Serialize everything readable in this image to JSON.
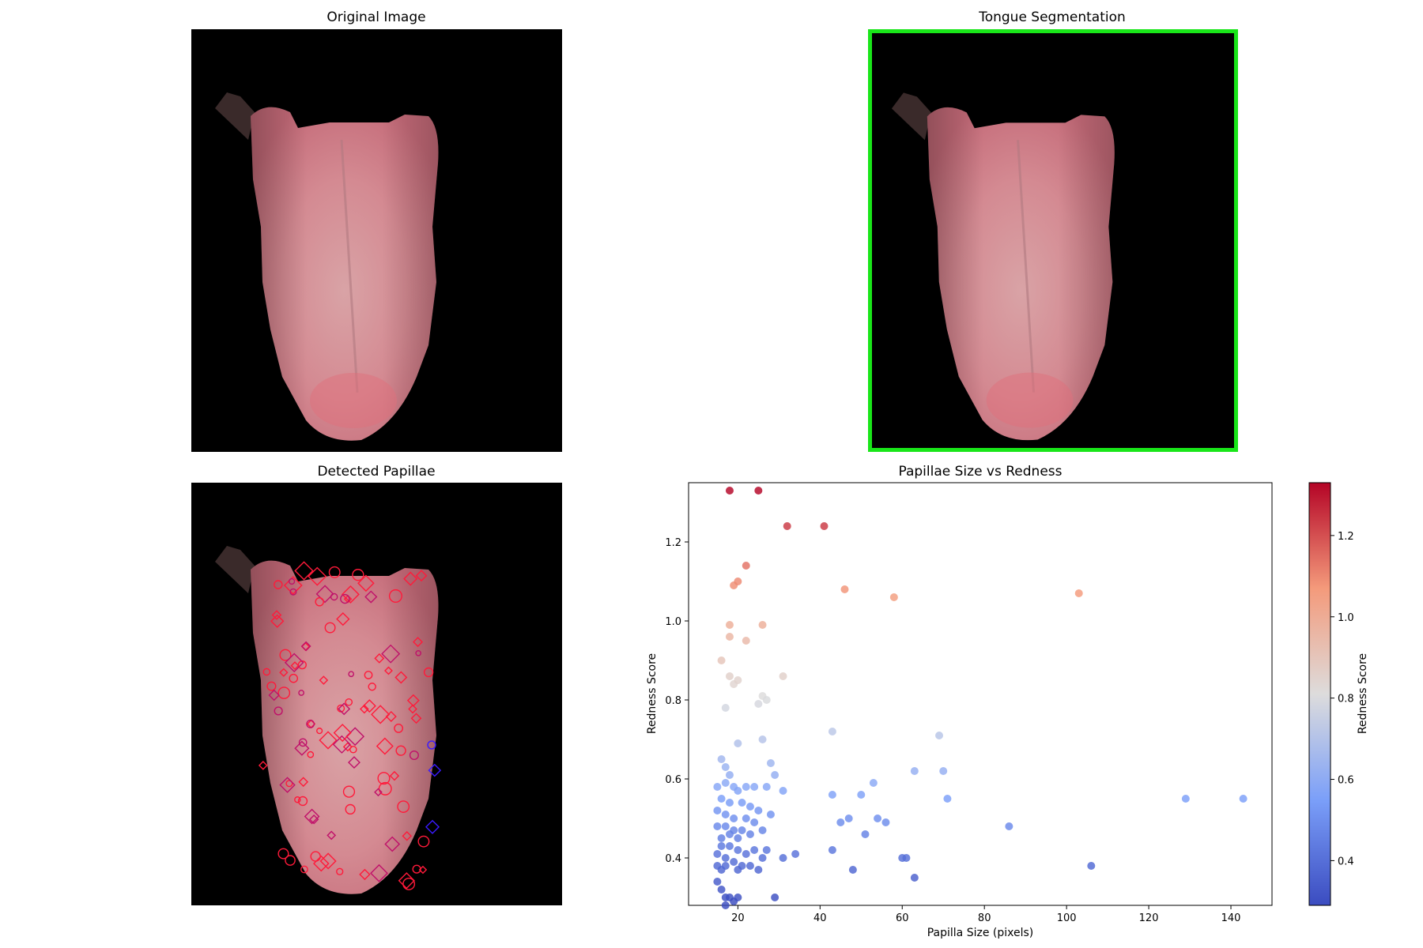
{
  "panels": {
    "original": {
      "title": "Original Image"
    },
    "segmentation": {
      "title": "Tongue Segmentation",
      "frame_color": "#19e619"
    },
    "papillae": {
      "title": "Detected Papillae"
    }
  },
  "chart_data": {
    "type": "scatter",
    "title": "Papillae Size vs Redness",
    "xlabel": "Papilla Size (pixels)",
    "ylabel": "Redness Score",
    "xlim": [
      8,
      150
    ],
    "ylim": [
      0.28,
      1.35
    ],
    "xticks": [
      20,
      40,
      60,
      80,
      100,
      120,
      140
    ],
    "yticks": [
      0.4,
      0.6,
      0.8,
      1.0,
      1.2
    ],
    "ytick_labels": [
      "0.4",
      "0.6",
      "0.8",
      "1.0",
      "1.2"
    ],
    "grid": false,
    "colormap": "coolwarm",
    "colorbar": {
      "label": "Redness Score",
      "range": [
        0.29,
        1.33
      ],
      "ticks": [
        0.4,
        0.6,
        0.8,
        1.0,
        1.2
      ],
      "tick_labels": [
        "0.4",
        "0.6",
        "0.8",
        "1.0",
        "1.2"
      ]
    },
    "points": [
      [
        18,
        1.33
      ],
      [
        25,
        1.33
      ],
      [
        32,
        1.24
      ],
      [
        41,
        1.24
      ],
      [
        22,
        1.14
      ],
      [
        19,
        1.09
      ],
      [
        20,
        1.1
      ],
      [
        46,
        1.08
      ],
      [
        58,
        1.06
      ],
      [
        103,
        1.07
      ],
      [
        18,
        0.99
      ],
      [
        26,
        0.99
      ],
      [
        18,
        0.96
      ],
      [
        22,
        0.95
      ],
      [
        16,
        0.9
      ],
      [
        31,
        0.86
      ],
      [
        18,
        0.86
      ],
      [
        19,
        0.84
      ],
      [
        20,
        0.85
      ],
      [
        25,
        0.79
      ],
      [
        26,
        0.81
      ],
      [
        27,
        0.8
      ],
      [
        17,
        0.78
      ],
      [
        43,
        0.72
      ],
      [
        69,
        0.71
      ],
      [
        20,
        0.69
      ],
      [
        26,
        0.7
      ],
      [
        28,
        0.64
      ],
      [
        16,
        0.65
      ],
      [
        17,
        0.63
      ],
      [
        63,
        0.62
      ],
      [
        70,
        0.62
      ],
      [
        29,
        0.61
      ],
      [
        18,
        0.61
      ],
      [
        15,
        0.58
      ],
      [
        17,
        0.59
      ],
      [
        19,
        0.58
      ],
      [
        20,
        0.57
      ],
      [
        22,
        0.58
      ],
      [
        24,
        0.58
      ],
      [
        27,
        0.58
      ],
      [
        31,
        0.57
      ],
      [
        43,
        0.56
      ],
      [
        50,
        0.56
      ],
      [
        53,
        0.59
      ],
      [
        71,
        0.55
      ],
      [
        129,
        0.55
      ],
      [
        143,
        0.55
      ],
      [
        16,
        0.55
      ],
      [
        18,
        0.54
      ],
      [
        21,
        0.54
      ],
      [
        23,
        0.53
      ],
      [
        25,
        0.52
      ],
      [
        28,
        0.51
      ],
      [
        15,
        0.52
      ],
      [
        17,
        0.51
      ],
      [
        19,
        0.5
      ],
      [
        22,
        0.5
      ],
      [
        24,
        0.49
      ],
      [
        45,
        0.49
      ],
      [
        47,
        0.5
      ],
      [
        54,
        0.5
      ],
      [
        56,
        0.49
      ],
      [
        86,
        0.48
      ],
      [
        15,
        0.48
      ],
      [
        17,
        0.48
      ],
      [
        19,
        0.47
      ],
      [
        21,
        0.47
      ],
      [
        23,
        0.46
      ],
      [
        26,
        0.47
      ],
      [
        16,
        0.45
      ],
      [
        18,
        0.46
      ],
      [
        20,
        0.45
      ],
      [
        51,
        0.46
      ],
      [
        16,
        0.43
      ],
      [
        18,
        0.43
      ],
      [
        20,
        0.42
      ],
      [
        22,
        0.41
      ],
      [
        24,
        0.42
      ],
      [
        27,
        0.42
      ],
      [
        31,
        0.4
      ],
      [
        34,
        0.41
      ],
      [
        43,
        0.42
      ],
      [
        60,
        0.4
      ],
      [
        61,
        0.4
      ],
      [
        15,
        0.41
      ],
      [
        17,
        0.4
      ],
      [
        19,
        0.39
      ],
      [
        21,
        0.38
      ],
      [
        23,
        0.38
      ],
      [
        26,
        0.4
      ],
      [
        15,
        0.38
      ],
      [
        16,
        0.37
      ],
      [
        17,
        0.38
      ],
      [
        20,
        0.37
      ],
      [
        25,
        0.37
      ],
      [
        48,
        0.37
      ],
      [
        63,
        0.35
      ],
      [
        106,
        0.38
      ],
      [
        15,
        0.34
      ],
      [
        16,
        0.32
      ],
      [
        17,
        0.3
      ],
      [
        18,
        0.3
      ],
      [
        19,
        0.29
      ],
      [
        20,
        0.3
      ],
      [
        17,
        0.28
      ],
      [
        29,
        0.3
      ]
    ]
  }
}
